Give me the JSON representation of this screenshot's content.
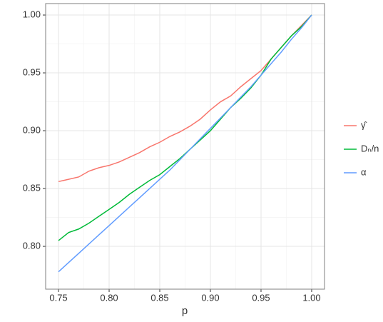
{
  "chart_data": {
    "type": "line",
    "x_label": "p",
    "x": [
      0.75,
      0.76,
      0.77,
      0.78,
      0.79,
      0.8,
      0.81,
      0.82,
      0.83,
      0.84,
      0.85,
      0.86,
      0.87,
      0.88,
      0.89,
      0.9,
      0.91,
      0.92,
      0.93,
      0.94,
      0.95,
      0.96,
      0.97,
      0.98,
      0.99,
      1.0
    ],
    "series": [
      {
        "name": "γ̂",
        "color": "#f8766d",
        "values": [
          0.856,
          0.858,
          0.86,
          0.865,
          0.868,
          0.87,
          0.873,
          0.877,
          0.881,
          0.886,
          0.89,
          0.895,
          0.899,
          0.904,
          0.91,
          0.918,
          0.925,
          0.93,
          0.938,
          0.945,
          0.952,
          0.962,
          0.972,
          0.982,
          0.991,
          1.0
        ]
      },
      {
        "name": "Dₙ/n",
        "color": "#00ba38",
        "values": [
          0.805,
          0.812,
          0.815,
          0.82,
          0.826,
          0.832,
          0.838,
          0.845,
          0.851,
          0.857,
          0.862,
          0.869,
          0.876,
          0.884,
          0.892,
          0.9,
          0.91,
          0.92,
          0.928,
          0.937,
          0.948,
          0.962,
          0.972,
          0.982,
          0.99,
          1.0
        ]
      },
      {
        "name": "α",
        "color": "#619cff",
        "values": [
          0.778,
          0.786,
          0.794,
          0.802,
          0.81,
          0.818,
          0.826,
          0.834,
          0.842,
          0.85,
          0.858,
          0.866,
          0.875,
          0.884,
          0.893,
          0.902,
          0.911,
          0.92,
          0.929,
          0.938,
          0.948,
          0.958,
          0.968,
          0.979,
          0.989,
          1.0
        ]
      }
    ],
    "xlim": [
      0.7373,
      1.0127
    ],
    "ylim": [
      0.763,
      1.0099
    ],
    "xticks": [
      0.75,
      {
        "value": 0.8,
        "label": "0.80"
      },
      0.85,
      {
        "value": 0.9,
        "label": "0.90"
      },
      0.95,
      {
        "value": 1.0,
        "label": "1.00"
      }
    ],
    "yticks": [
      {
        "value": 0.8,
        "label": "0.80"
      },
      0.85,
      {
        "value": 0.9,
        "label": "0.90"
      },
      0.95,
      {
        "value": 1.0,
        "label": "1.00"
      }
    ],
    "grid": true,
    "legend": "right"
  }
}
